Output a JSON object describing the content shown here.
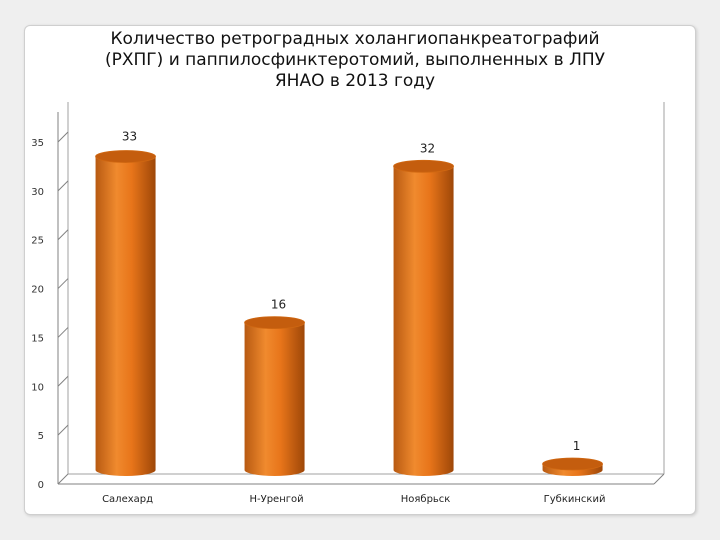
{
  "chart_data": {
    "type": "bar",
    "title": "Количество ретроградных    холангиопанкреатографий\n(РХПГ) и паппилосфинктеротомий, выполненных в ЛПУ\nЯНАО в 2013 году",
    "categories": [
      "Салехард",
      "Н-Уренгой",
      "Ноябрьск",
      "Губкинский"
    ],
    "values": [
      33,
      16,
      32,
      1
    ],
    "data_labels": [
      "33",
      "16",
      "32",
      "1"
    ],
    "y_ticks": [
      "0",
      "5",
      "10",
      "15",
      "20",
      "25",
      "30",
      "35"
    ],
    "ylim": [
      0,
      35
    ],
    "grid": false,
    "bar_color": "#e8751a",
    "bar_dark": "#a94d0b",
    "bar_top": "#c45d0e"
  }
}
